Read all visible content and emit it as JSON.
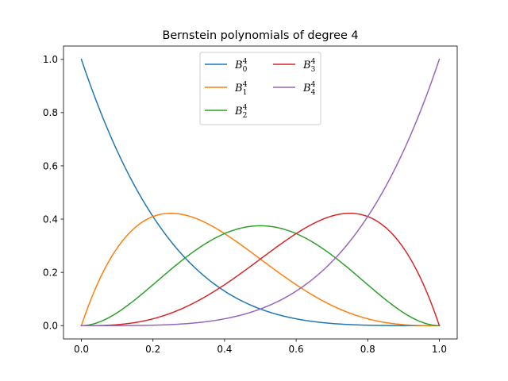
{
  "chart_data": {
    "type": "line",
    "title": "Bernstein polynomials of degree 4",
    "xlabel": "",
    "ylabel": "",
    "xlim": [
      -0.05,
      1.05
    ],
    "ylim": [
      -0.05,
      1.05
    ],
    "xticks": [
      0.0,
      0.2,
      0.4,
      0.6,
      0.8,
      1.0
    ],
    "yticks": [
      0.0,
      0.2,
      0.4,
      0.6,
      0.8,
      1.0
    ],
    "xtick_labels": [
      "0.0",
      "0.2",
      "0.4",
      "0.6",
      "0.8",
      "1.0"
    ],
    "ytick_labels": [
      "0.0",
      "0.2",
      "0.4",
      "0.6",
      "0.8",
      "1.0"
    ],
    "grid": false,
    "legend_placement": "upper center",
    "legend_columns": 2,
    "x": [
      0.0,
      0.05,
      0.1,
      0.15,
      0.2,
      0.25,
      0.3,
      0.35,
      0.4,
      0.45,
      0.5,
      0.55,
      0.6,
      0.65,
      0.7,
      0.75,
      0.8,
      0.85,
      0.9,
      0.95,
      1.0
    ],
    "series": [
      {
        "name": "B",
        "sub": "0",
        "sup": "4",
        "color": "#1f77b4",
        "values": [
          1.0,
          0.8145,
          0.6561,
          0.522,
          0.4096,
          0.3164,
          0.2401,
          0.1785,
          0.1296,
          0.0915,
          0.0625,
          0.041,
          0.0256,
          0.015,
          0.0081,
          0.0039,
          0.0016,
          0.0005,
          0.0001,
          0.0,
          0.0
        ]
      },
      {
        "name": "B",
        "sub": "1",
        "sup": "4",
        "color": "#ff7f0e",
        "values": [
          0.0,
          0.1715,
          0.2916,
          0.3685,
          0.4096,
          0.4219,
          0.4116,
          0.3845,
          0.3456,
          0.2995,
          0.25,
          0.2005,
          0.1536,
          0.1115,
          0.0756,
          0.0469,
          0.0256,
          0.0115,
          0.0036,
          0.0005,
          0.0
        ]
      },
      {
        "name": "B",
        "sub": "2",
        "sup": "4",
        "color": "#2ca02c",
        "values": [
          0.0,
          0.0135,
          0.0486,
          0.0975,
          0.1536,
          0.2109,
          0.2646,
          0.3105,
          0.3456,
          0.3675,
          0.375,
          0.3675,
          0.3456,
          0.3105,
          0.2646,
          0.2109,
          0.1536,
          0.0975,
          0.0486,
          0.0135,
          0.0
        ]
      },
      {
        "name": "B",
        "sub": "3",
        "sup": "4",
        "color": "#d62728",
        "values": [
          0.0,
          0.0005,
          0.0036,
          0.0115,
          0.0256,
          0.0469,
          0.0756,
          0.1115,
          0.1536,
          0.2005,
          0.25,
          0.2995,
          0.3456,
          0.3845,
          0.4116,
          0.4219,
          0.4096,
          0.3685,
          0.2916,
          0.1715,
          0.0
        ]
      },
      {
        "name": "B",
        "sub": "4",
        "sup": "4",
        "color": "#9467bd",
        "values": [
          0.0,
          0.0,
          0.0001,
          0.0005,
          0.0016,
          0.0039,
          0.0081,
          0.015,
          0.0256,
          0.041,
          0.0625,
          0.0915,
          0.1296,
          0.1785,
          0.2401,
          0.3164,
          0.4096,
          0.522,
          0.6561,
          0.8145,
          1.0
        ]
      }
    ]
  }
}
